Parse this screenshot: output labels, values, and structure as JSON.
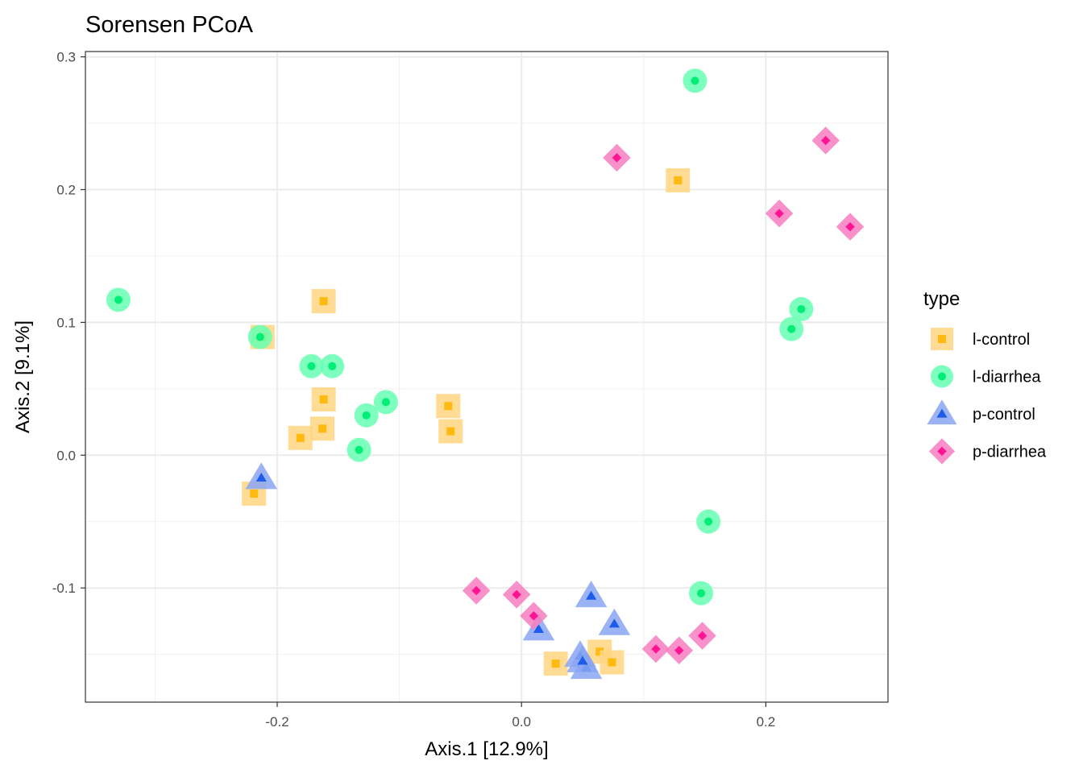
{
  "chart_data": {
    "type": "scatter",
    "title": "Sorensen PCoA",
    "xlabel": "Axis.1   [12.9%]",
    "ylabel": "Axis.2   [9.1%]",
    "xlim": [
      -0.357,
      0.3
    ],
    "ylim": [
      -0.186,
      0.304
    ],
    "x_ticks": [
      -0.2,
      0.0,
      0.2
    ],
    "x_tick_labels": [
      "-0.2",
      "0.0",
      "0.2"
    ],
    "y_ticks": [
      -0.1,
      0.0,
      0.1,
      0.2,
      0.3
    ],
    "y_tick_labels": [
      "-0.1",
      "0.0",
      "0.1",
      "0.2",
      "0.3"
    ],
    "grid": true,
    "legend": {
      "title": "type",
      "position": "right"
    },
    "series": [
      {
        "name": "l-control",
        "shape": "square",
        "color": "#FFB90F",
        "halo_color": "#FFD580",
        "points": [
          [
            0.128,
            0.207
          ],
          [
            -0.162,
            0.116
          ],
          [
            -0.212,
            0.089
          ],
          [
            -0.162,
            0.042
          ],
          [
            -0.06,
            0.037
          ],
          [
            -0.163,
            0.02
          ],
          [
            -0.181,
            0.013
          ],
          [
            -0.058,
            0.018
          ],
          [
            -0.219,
            -0.029
          ],
          [
            0.064,
            -0.148
          ],
          [
            0.074,
            -0.156
          ],
          [
            0.028,
            -0.157
          ]
        ]
      },
      {
        "name": "l-diarrhea",
        "shape": "circle",
        "color": "#00EE76",
        "halo_color": "#66FFB2",
        "points": [
          [
            0.142,
            0.282
          ],
          [
            -0.33,
            0.117
          ],
          [
            -0.214,
            0.089
          ],
          [
            -0.172,
            0.067
          ],
          [
            -0.155,
            0.067
          ],
          [
            -0.111,
            0.04
          ],
          [
            -0.127,
            0.03
          ],
          [
            -0.133,
            0.004
          ],
          [
            0.229,
            0.11
          ],
          [
            0.221,
            0.095
          ],
          [
            0.153,
            -0.05
          ],
          [
            0.147,
            -0.104
          ]
        ]
      },
      {
        "name": "p-control",
        "shape": "triangle",
        "color": "#1C5CE8",
        "halo_color": "#8AA6F2",
        "points": [
          [
            -0.213,
            -0.017
          ],
          [
            0.057,
            -0.106
          ],
          [
            0.076,
            -0.127
          ],
          [
            0.014,
            -0.131
          ],
          [
            0.048,
            -0.151
          ],
          [
            0.053,
            -0.16
          ],
          [
            0.05,
            -0.155
          ]
        ]
      },
      {
        "name": "p-diarrhea",
        "shape": "diamond",
        "color": "#FF1493",
        "halo_color": "#F77EBF",
        "points": [
          [
            0.078,
            0.224
          ],
          [
            0.249,
            0.237
          ],
          [
            0.211,
            0.182
          ],
          [
            0.269,
            0.172
          ],
          [
            -0.037,
            -0.102
          ],
          [
            -0.004,
            -0.105
          ],
          [
            0.01,
            -0.121
          ],
          [
            0.148,
            -0.136
          ],
          [
            0.11,
            -0.146
          ],
          [
            0.129,
            -0.147
          ]
        ]
      }
    ]
  }
}
